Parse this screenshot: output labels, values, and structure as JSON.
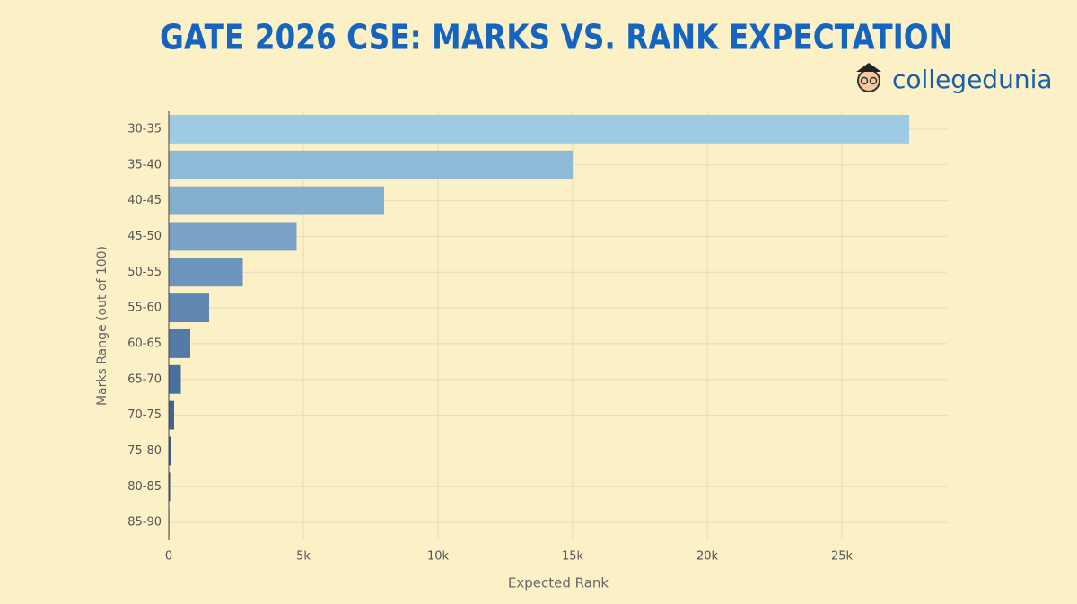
{
  "chart_data": {
    "type": "hbar",
    "title": "GATE 2026 CSE: MARKS VS. RANK EXPECTATION",
    "brand": "collegedunia",
    "x_label": "Expected Rank",
    "y_label": "Marks Range (out of 100)",
    "categories": [
      "30-35",
      "35-40",
      "40-45",
      "45-50",
      "50-55",
      "55-60",
      "60-65",
      "65-70",
      "70-75",
      "75-80",
      "80-85",
      "85-90"
    ],
    "values": [
      27500,
      15000,
      8000,
      4750,
      2750,
      1500,
      800,
      450,
      200,
      100,
      50,
      20
    ],
    "colors": [
      "#9fcae3",
      "#8fbad7",
      "#85afcf",
      "#7aa2c6",
      "#6c95bd",
      "#5f87b2",
      "#547ba8",
      "#486f9d",
      "#3f6492",
      "#375a87",
      "#30507e",
      "#2a4874"
    ],
    "xlim": [
      0,
      28900
    ],
    "xticks": [
      0,
      {
        "value": 5000,
        "label": "5k"
      },
      {
        "value": 10000,
        "label": "10k"
      },
      {
        "value": 15000,
        "label": "15k"
      },
      {
        "value": 20000,
        "label": "20k"
      },
      {
        "value": 25000,
        "label": "25k"
      }
    ],
    "grid": true
  }
}
